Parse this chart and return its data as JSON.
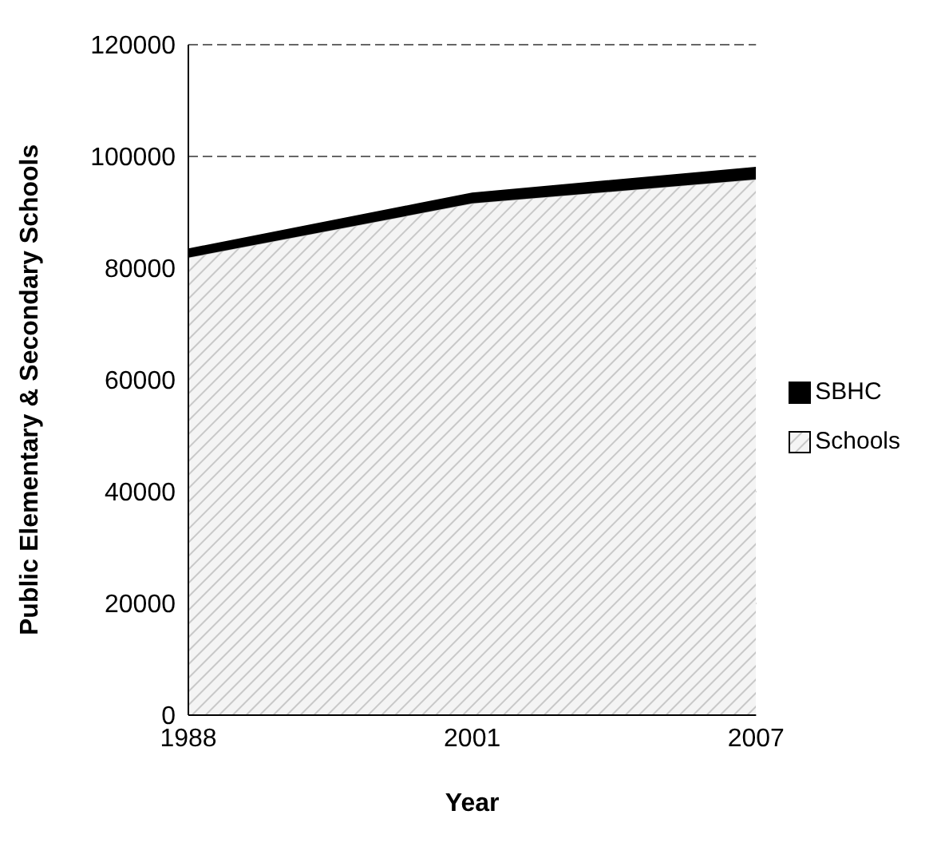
{
  "chart_data": {
    "type": "area",
    "stacked": true,
    "xlabel": "Year",
    "ylabel": "Public Elementary & Secondary Schools",
    "categories": [
      "1988",
      "2001",
      "2007"
    ],
    "series": [
      {
        "name": "Schools",
        "color": "#c8c8c8",
        "values": [
          81900,
          91600,
          95900
        ]
      },
      {
        "name": "SBHC",
        "color": "#000000",
        "values": [
          1500,
          1800,
          2100
        ]
      }
    ],
    "ylim": [
      0,
      120000
    ],
    "yticks": [
      0,
      20000,
      40000,
      60000,
      80000,
      100000,
      120000
    ],
    "grid": "y",
    "legend": "right"
  }
}
